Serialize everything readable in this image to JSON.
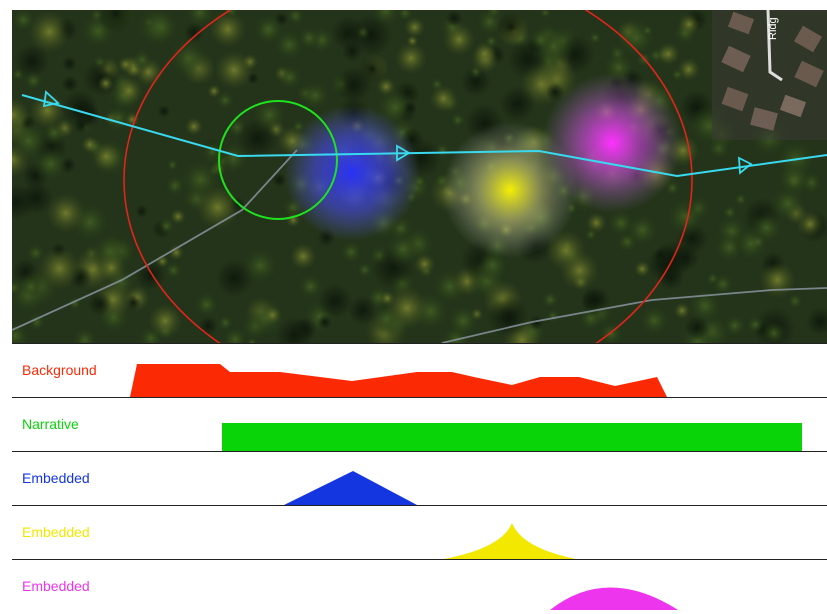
{
  "map": {
    "street_label": "Ridg",
    "colors": {
      "path": "#39d9ef",
      "red_circle": "#e0251b",
      "green_circle": "#1fe21f",
      "blue_blob": "#2a32ff",
      "yellow_blob": "#f5f000",
      "magenta_blob": "#e636e6"
    }
  },
  "tracks": [
    {
      "label": "Background",
      "color": "#fb2a05",
      "shape": "area"
    },
    {
      "label": "Narrative",
      "color": "#08d408",
      "shape": "bar"
    },
    {
      "label": "Embedded",
      "color": "#1436e0",
      "shape": "triangle"
    },
    {
      "label": "Embedded",
      "color": "#f3e800",
      "shape": "cusp"
    },
    {
      "label": "Embedded",
      "color": "#ee35ee",
      "shape": "dome"
    }
  ]
}
